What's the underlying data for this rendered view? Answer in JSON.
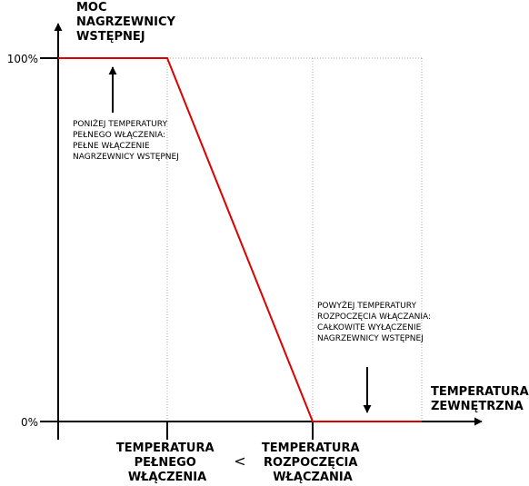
{
  "colors": {
    "axis": "#000000",
    "series": "#dd0000",
    "grid": "#a8a8a8"
  },
  "chart_data": {
    "type": "line",
    "ylabel": [
      "MOC",
      "NAGRZEWNICY",
      "WSTĘPNEJ"
    ],
    "xlabel": [
      "TEMPERATURA",
      "ZEWNĘTRZNA"
    ],
    "y_ticks": [
      "100%",
      "0%"
    ],
    "ylim": [
      0,
      100
    ],
    "x_categories": [
      {
        "lines": [
          "TEMPERATURA",
          "PEŁNEGO",
          "WŁĄCZENIA"
        ]
      },
      {
        "lines": [
          "TEMPERATURA",
          "ROZPOCZĘCIA",
          "WŁĄCZANIA"
        ]
      }
    ],
    "comparison_symbol": "<",
    "grid": "dotted guide lines at the two temperature thresholds and the right end",
    "series": [
      {
        "x": [
          "start",
          "TEMPERATURA PEŁNEGO WŁĄCZENIA",
          "TEMPERATURA ROZPOCZĘCIA WŁĄCZANIA",
          "end"
        ],
        "values": [
          100,
          100,
          0,
          0
        ]
      }
    ],
    "annotations": [
      {
        "lines": [
          "PONIŻEJ TEMPERATURY",
          "PEŁNEGO WŁĄCZENIA:",
          "",
          "PEŁNE WŁĄCZENIE",
          "NAGRZEWNICY WSTĘPNEJ"
        ],
        "arrow": "up"
      },
      {
        "lines": [
          "POWYŻEJ TEMPERATURY",
          "ROZPOCZĘCIA WŁĄCZANIA:",
          "",
          "CAŁKOWITE WYŁĄCZENIE",
          "NAGRZEWNICY WSTĘPNEJ"
        ],
        "arrow": "down"
      }
    ]
  }
}
